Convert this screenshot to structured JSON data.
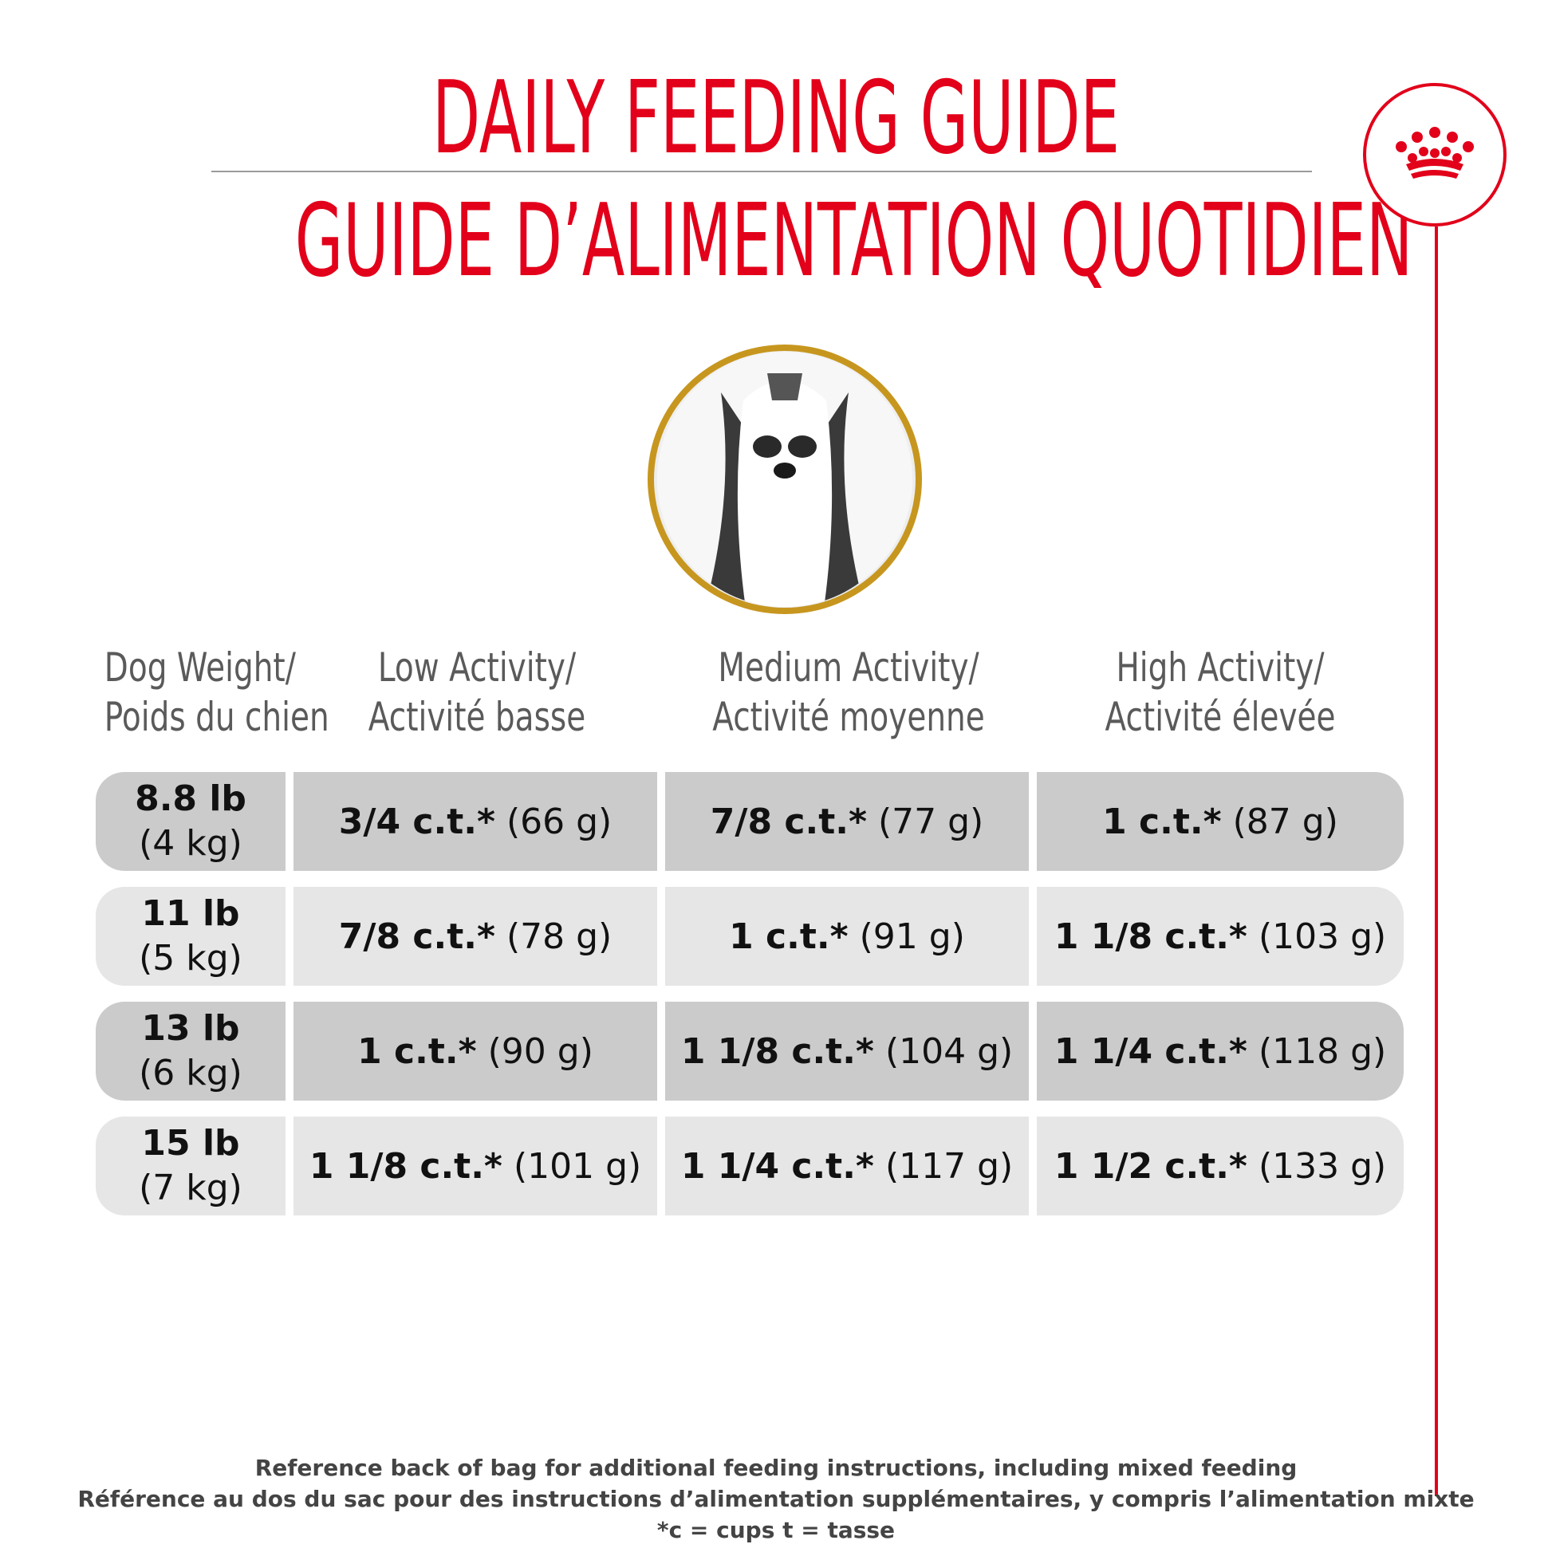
{
  "header": {
    "title_en": "DAILY FEEDING GUIDE",
    "title_fr": "GUIDE D’ALIMENTATION QUOTIDIEN"
  },
  "brand": {
    "logo_icon": "crown-icon",
    "accent_color": "#e2001a"
  },
  "photo": {
    "frame_color": "#c7961e",
    "subject_icon": "dog-photo"
  },
  "table": {
    "headers": [
      {
        "line1": "Dog Weight/",
        "line2": "Poids du chien"
      },
      {
        "line1": "Low Activity/",
        "line2": "Activité basse"
      },
      {
        "line1": "Medium Activity/",
        "line2": "Activité moyenne"
      },
      {
        "line1": "High Activity/",
        "line2": "Activité élevée"
      }
    ],
    "rows": [
      {
        "lb": "8.8 lb",
        "kg": "(4 kg)",
        "low": {
          "cups": "3/4 c.t.*",
          "grams": "(66 g)"
        },
        "medium": {
          "cups": "7/8 c.t.*",
          "grams": "(77 g)"
        },
        "high": {
          "cups": "1 c.t.*",
          "grams": "(87 g)"
        }
      },
      {
        "lb": "11 lb",
        "kg": "(5 kg)",
        "low": {
          "cups": "7/8 c.t.*",
          "grams": "(78 g)"
        },
        "medium": {
          "cups": "1 c.t.*",
          "grams": "(91 g)"
        },
        "high": {
          "cups": "1 1/8 c.t.*",
          "grams": "(103 g)"
        }
      },
      {
        "lb": "13 lb",
        "kg": "(6 kg)",
        "low": {
          "cups": "1 c.t.*",
          "grams": "(90 g)"
        },
        "medium": {
          "cups": "1 1/8 c.t.*",
          "grams": "(104 g)"
        },
        "high": {
          "cups": "1 1/4 c.t.*",
          "grams": "(118 g)"
        }
      },
      {
        "lb": "15 lb",
        "kg": "(7 kg)",
        "low": {
          "cups": "1 1/8 c.t.*",
          "grams": "(101 g)"
        },
        "medium": {
          "cups": "1 1/4 c.t.*",
          "grams": "(117 g)"
        },
        "high": {
          "cups": "1 1/2 c.t.*",
          "grams": "(133 g)"
        }
      }
    ]
  },
  "footer": {
    "line1": "Reference back of bag for additional feeding instructions, including mixed feeding",
    "line2": "Référence au dos du sac pour des instructions d’alimentation supplémentaires, y compris l’alimentation mixte",
    "line3": "*c = cups t = tasse"
  }
}
